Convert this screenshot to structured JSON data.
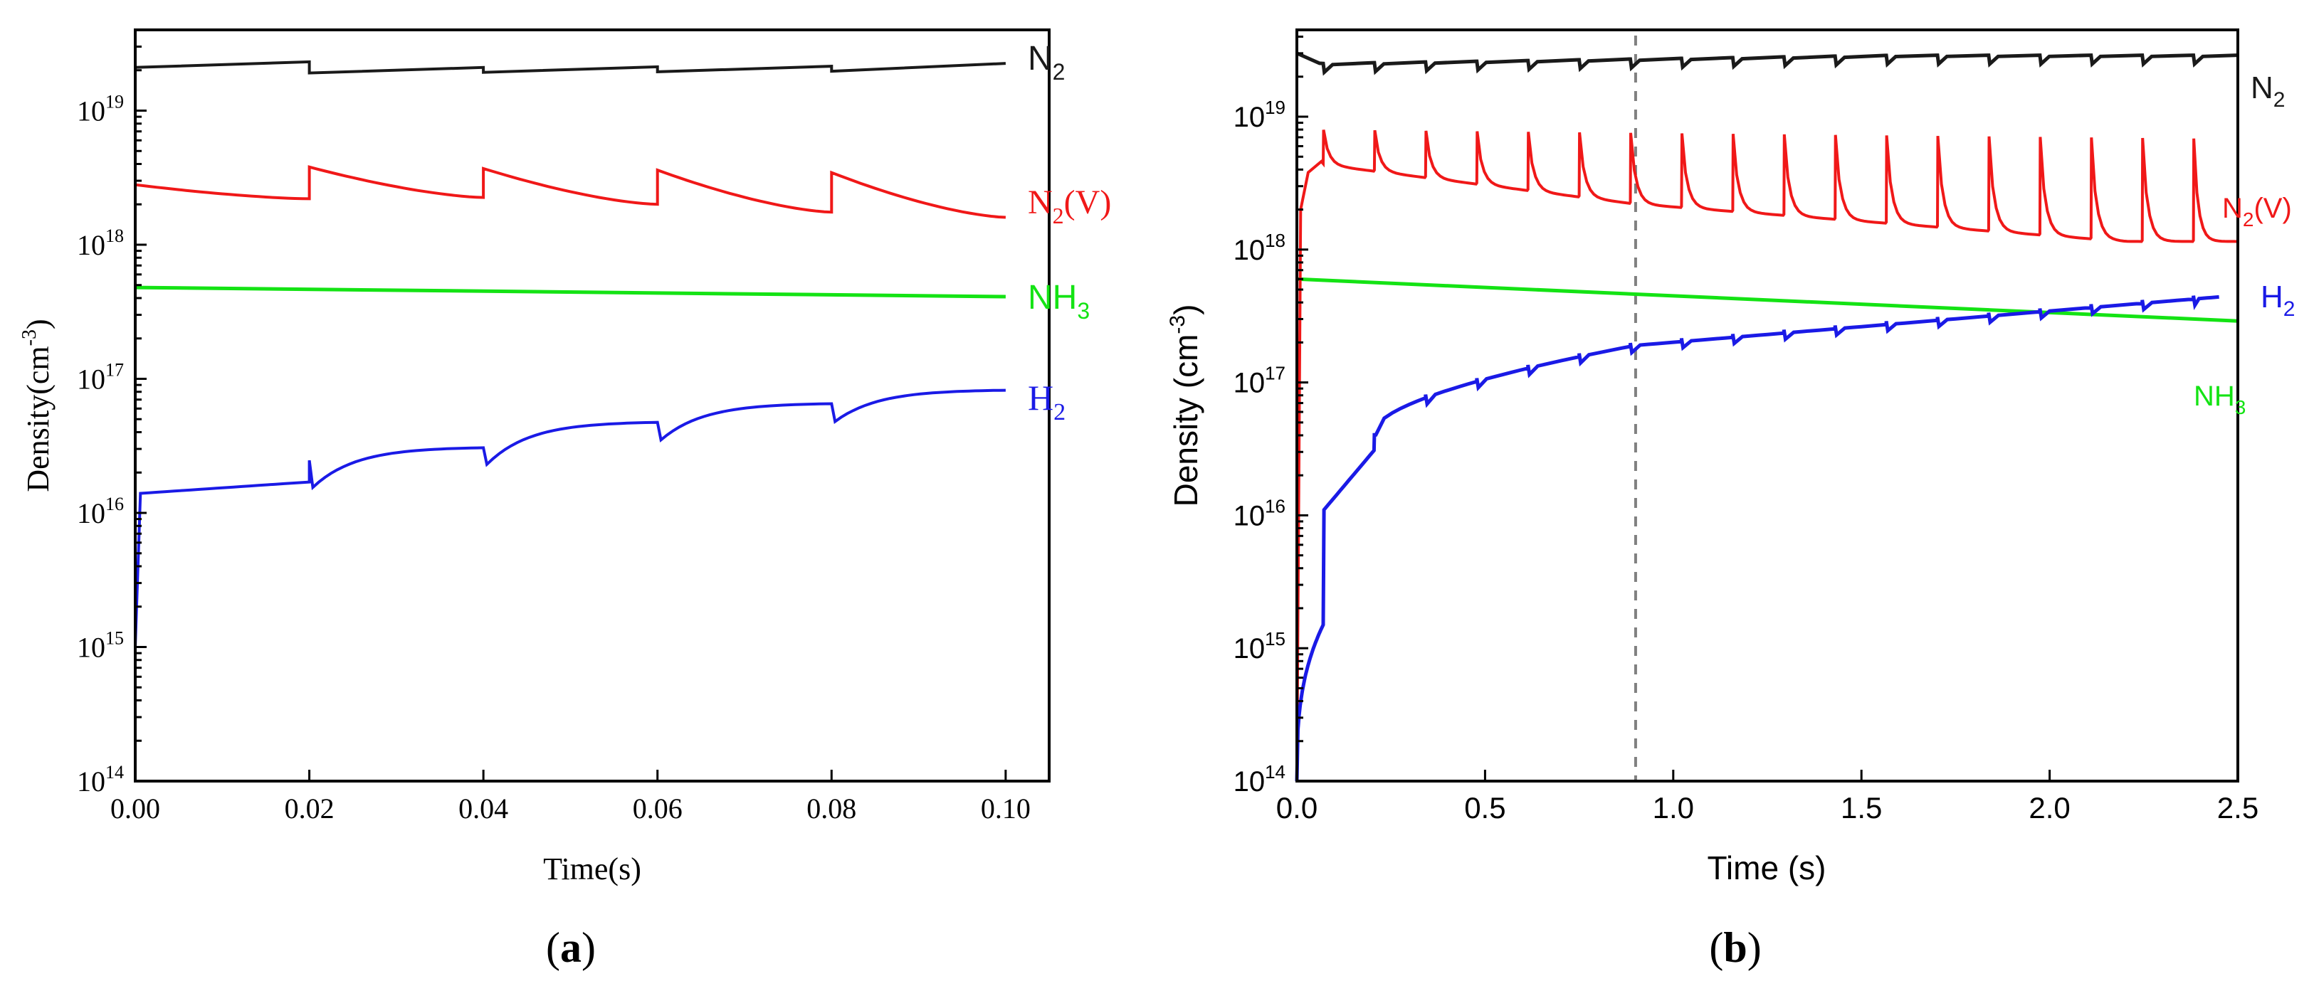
{
  "colors": {
    "n2": "#1a1a1a",
    "n2v": "#f01818",
    "nh3": "#14e314",
    "h2": "#1a1ae6",
    "marker": "#808080",
    "axis": "#000000"
  },
  "chart_data": [
    {
      "panel": "a",
      "type": "line",
      "xlabel": "Time(s)",
      "ylabel": "Density(cm-3)",
      "ylabel_main": "Density(cm",
      "ylabel_sup": "-3",
      "ylabel_close": ")",
      "yscale": "log",
      "xlim": [
        0.0,
        0.105
      ],
      "ylim": [
        100000000000000.0,
        4e+19
      ],
      "xticks": [
        0.0,
        0.02,
        0.04,
        0.06,
        0.08,
        0.1
      ],
      "xtick_labels": [
        "0.00",
        "0.02",
        "0.04",
        "0.06",
        "0.08",
        "0.10"
      ],
      "ytick_exponents": [
        14,
        15,
        16,
        17,
        18,
        19
      ],
      "ytick_base": "10",
      "pulses": [
        0.02,
        0.04,
        0.06,
        0.08
      ],
      "t_end": 0.1,
      "series": [
        {
          "name": "N2",
          "label_main": "N",
          "label_sub": "2",
          "label_tail": "",
          "color": "n2",
          "model": "steps",
          "start": 2.1e+19,
          "pulse_drop": 0.9,
          "interval_rise": 1.1,
          "end": 2.25e+19
        },
        {
          "name": "N2(V)",
          "label_main": "N",
          "label_sub": "2",
          "label_tail": "(V)",
          "color": "n2v",
          "model": "sawtooth",
          "start": 2.8e+18,
          "peaks": [
            3.8e+18,
            3.7e+18,
            3.6e+18,
            3.45e+18
          ],
          "troughs": [
            2.2e+18,
            2.25e+18,
            2e+18,
            1.75e+18
          ],
          "end": 1.6e+18
        },
        {
          "name": "NH3",
          "label_main": "NH",
          "label_sub": "3",
          "label_tail": "",
          "color": "nh3",
          "model": "linear",
          "start": 4.8e+17,
          "end": 4.1e+17
        },
        {
          "name": "H2",
          "label_main": "H",
          "label_sub": "2",
          "label_tail": "",
          "color": "h2",
          "model": "recovery",
          "start": 1.4e+16,
          "pulse_values": [
            1.7e+16,
            3.1e+16,
            4.8e+16,
            6.6e+16
          ],
          "dips": [
            1.55e+16,
            2.3e+16,
            3.5e+16,
            4.8e+16
          ],
          "end": 8.3e+16
        }
      ]
    },
    {
      "panel": "b",
      "type": "line",
      "xlabel": "Time (s)",
      "ylabel": "Density (cm-3)",
      "ylabel_main": "Density (cm",
      "ylabel_sup": "-3",
      "ylabel_close": ")",
      "yscale": "log",
      "xlim": [
        0.0,
        2.5
      ],
      "ylim": [
        100000000000000.0,
        4.5e+19
      ],
      "xticks": [
        0.0,
        0.5,
        1.0,
        1.5,
        2.0,
        2.5
      ],
      "xtick_labels": [
        "0.0",
        "0.5",
        "1.0",
        "1.5",
        "2.0",
        "2.5"
      ],
      "ytick_exponents": [
        14,
        15,
        16,
        17,
        18,
        19
      ],
      "ytick_base": "10",
      "marker_line_x": 0.9,
      "pulse_period": 0.136,
      "pulse_start": 0.07,
      "t_end": 2.5,
      "series": [
        {
          "name": "N2",
          "label_main": "N",
          "label_sub": "2",
          "label_tail": "",
          "color": "n2",
          "start": 3e+19,
          "level_start": 2.5e+19,
          "level_end": 2.9e+19
        },
        {
          "name": "N2(V)",
          "label_main": "N",
          "label_sub": "2",
          "label_tail": "(V)",
          "color": "n2v",
          "spike_peak": 8e+18,
          "spike_peak_end": 6.8e+18,
          "base_start": 4.6e+18,
          "base_mid": 2.2e+18,
          "base_end": 1.15e+18
        },
        {
          "name": "H2",
          "label_main": "H",
          "label_sub": "2",
          "label_tail": "",
          "color": "h2",
          "start": 100000000000000.0,
          "at_first_pulse": 1500000000000000.0,
          "after_first_pulse": 1.1e+16,
          "at_second_pulse": 3.2e+16,
          "at_1s": 1.9e+17,
          "end": 4.4e+17
        },
        {
          "name": "NH3",
          "label_main": "NH",
          "label_sub": "3",
          "label_tail": "",
          "color": "nh3",
          "start": 6e+17,
          "end": 2.9e+17
        }
      ]
    }
  ],
  "panel_labels": [
    {
      "open": "(",
      "letter": "a",
      "close": ")"
    },
    {
      "open": "(",
      "letter": "b",
      "close": ")"
    }
  ]
}
